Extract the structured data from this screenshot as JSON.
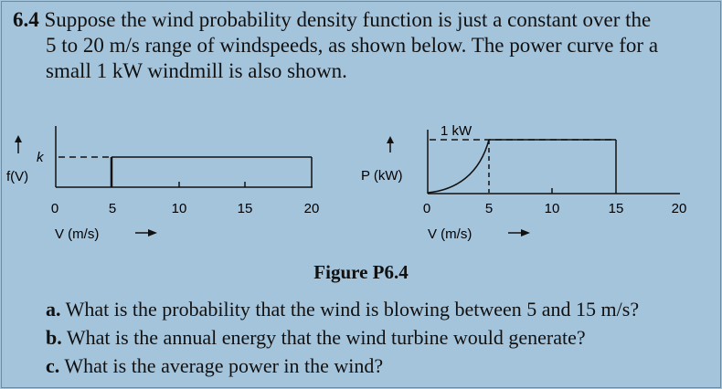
{
  "problem": {
    "number": "6.4",
    "line1": "Suppose the wind probability density function is just a constant over the",
    "line2": "5 to 20 m/s range of windspeeds, as shown below. The power curve for a",
    "line3": "small 1 kW windmill is also shown."
  },
  "figure_left": {
    "y_label_k": "k",
    "y_label": "f(V)",
    "x_ticks": [
      "0",
      "5",
      "10",
      "15",
      "20"
    ],
    "x_label": "V (m/s)"
  },
  "figure_right": {
    "y_label": "P (kW)",
    "top_label": "1 kW",
    "x_ticks": [
      "0",
      "5",
      "10",
      "15",
      "20"
    ],
    "x_label": "V (m/s)"
  },
  "caption": "Figure P6.4",
  "questions": [
    {
      "letter": "a.",
      "text": "What is the probability that the wind is blowing between 5 and 15 m/s?"
    },
    {
      "letter": "b.",
      "text": "What is the annual energy that the wind turbine would generate?"
    },
    {
      "letter": "c.",
      "text": "What is the average power in the wind?"
    }
  ],
  "chart_data": [
    {
      "type": "line",
      "x_ticks": [
        0,
        5,
        10,
        15,
        20
      ],
      "x": [
        5,
        20
      ],
      "values": [
        1,
        1
      ],
      "xlabel": "V (m/s)",
      "ylabel": "f(V)",
      "xlim": [
        0,
        20
      ]
    },
    {
      "type": "line",
      "x_ticks": [
        0,
        5,
        10,
        15,
        20
      ],
      "x": [
        0,
        5,
        5,
        15,
        15
      ],
      "values": [
        0,
        1,
        1,
        1,
        0
      ],
      "xlabel": "V (m/s)",
      "ylabel": "P (kW)",
      "xlim": [
        0,
        20
      ]
    }
  ]
}
